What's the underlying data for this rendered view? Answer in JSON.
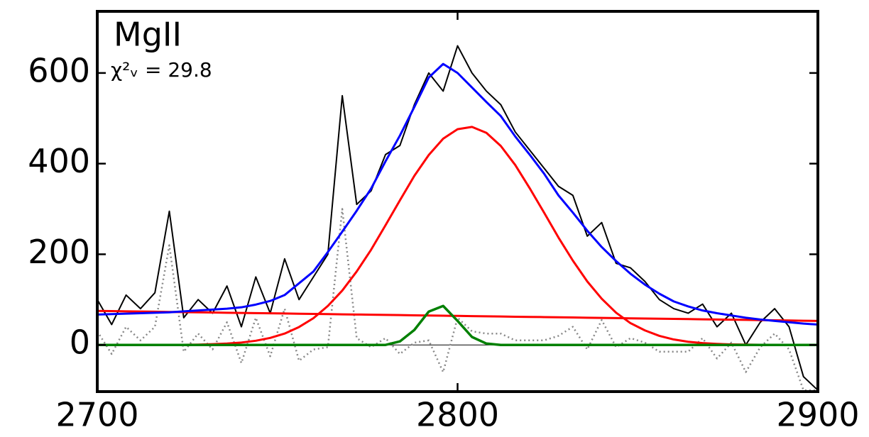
{
  "chart_data": {
    "type": "line",
    "annotations": [
      "MgII",
      "χ²ᵥ = 29.8"
    ],
    "x": [
      2700,
      2704,
      2708,
      2712,
      2716,
      2720,
      2724,
      2728,
      2732,
      2736,
      2740,
      2744,
      2748,
      2752,
      2756,
      2760,
      2764,
      2768,
      2772,
      2776,
      2780,
      2784,
      2788,
      2792,
      2796,
      2800,
      2804,
      2808,
      2812,
      2816,
      2820,
      2824,
      2828,
      2832,
      2836,
      2840,
      2844,
      2848,
      2852,
      2856,
      2860,
      2864,
      2868,
      2872,
      2876,
      2880,
      2884,
      2888,
      2892,
      2896,
      2900
    ],
    "series": [
      {
        "color": "#888888",
        "style": "dotted",
        "width": 2.5,
        "values": [
          30,
          -20,
          40,
          10,
          40,
          220,
          -15,
          25,
          -10,
          50,
          -40,
          60,
          -25,
          80,
          -35,
          -10,
          -5,
          300,
          15,
          -5,
          15,
          -20,
          5,
          10,
          -60,
          60,
          30,
          25,
          25,
          10,
          10,
          10,
          20,
          40,
          -10,
          55,
          -5,
          15,
          5,
          -15,
          -15,
          -15,
          15,
          -30,
          5,
          -60,
          -5,
          25,
          -10,
          -100,
          -100
        ]
      },
      {
        "color": "#000000",
        "style": "solid",
        "width": 2,
        "values": [
          100,
          45,
          110,
          80,
          115,
          295,
          60,
          100,
          70,
          130,
          40,
          150,
          70,
          190,
          100,
          150,
          200,
          550,
          310,
          340,
          420,
          440,
          530,
          600,
          560,
          660,
          600,
          560,
          530,
          470,
          430,
          390,
          350,
          330,
          240,
          270,
          180,
          170,
          140,
          100,
          80,
          70,
          90,
          40,
          70,
          0,
          50,
          80,
          40,
          -70,
          -100
        ]
      },
      {
        "color": "#ff0000",
        "style": "solid",
        "width": 3,
        "values": [
          0,
          0,
          0,
          0.04,
          0.09,
          0.2,
          0.4,
          0.8,
          1.6,
          3,
          5.3,
          9.2,
          15.5,
          25,
          39.5,
          59,
          86,
          120,
          162,
          210,
          264,
          319,
          373,
          419,
          455,
          476,
          481,
          468,
          439,
          397,
          346,
          292,
          237,
          186,
          140,
          102,
          71,
          48,
          32,
          20,
          12,
          7,
          4,
          2.2,
          1.1,
          0.6,
          0.3,
          0.1,
          0,
          0,
          0
        ]
      },
      {
        "color": "#ff0000",
        "style": "solid",
        "width": 3,
        "values": [
          75,
          74.6,
          74.1,
          73.7,
          73.2,
          72.8,
          72.4,
          71.9,
          71.5,
          71.0,
          70.6,
          70.2,
          69.7,
          69.3,
          68.8,
          68.4,
          68.0,
          67.5,
          67.1,
          66.6,
          66.2,
          65.8,
          65.3,
          64.9,
          64.4,
          64.0,
          63.6,
          63.1,
          62.7,
          62.2,
          61.8,
          61.4,
          60.9,
          60.5,
          60.0,
          59.6,
          59.2,
          58.7,
          58.3,
          57.8,
          57.4,
          57.0,
          56.5,
          56.1,
          55.6,
          55.2,
          54.8,
          54.3,
          53.9,
          53.4,
          53.0
        ]
      },
      {
        "color": "#008000",
        "style": "solid",
        "width": 3.5,
        "values": [
          0,
          0,
          0,
          0,
          0,
          0,
          0,
          0,
          0,
          0,
          0,
          0,
          0,
          0,
          0,
          0,
          0,
          0,
          0,
          0,
          0,
          7.8,
          33,
          73.5,
          86,
          53,
          17.5,
          3,
          0,
          0,
          0,
          0,
          0,
          0,
          0,
          0,
          0,
          0,
          0,
          0,
          0,
          0,
          0,
          0,
          0,
          0,
          0,
          0,
          0,
          0,
          0
        ]
      },
      {
        "color": "#0000ff",
        "style": "solid",
        "width": 3,
        "values": [
          67,
          68,
          69,
          70,
          71,
          72,
          74,
          76,
          78,
          80,
          83,
          89,
          97,
          110,
          136,
          162,
          205,
          250,
          296,
          345,
          405,
          462,
          525,
          590,
          620,
          600,
          568,
          536,
          505,
          460,
          420,
          378,
          330,
          292,
          252,
          216,
          185,
          157,
          133,
          113,
          96,
          85,
          76,
          70,
          65,
          60,
          56,
          53,
          50,
          47,
          45
        ]
      }
    ],
    "xlim": [
      2700,
      2900
    ],
    "ylim": [
      -103,
      736
    ],
    "xticks": [
      2700,
      2800,
      2900
    ],
    "yticks": [
      0,
      200,
      400,
      600
    ],
    "zero_line": true
  }
}
